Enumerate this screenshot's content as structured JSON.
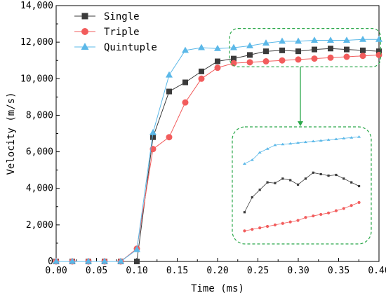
{
  "chart_data": {
    "type": "line",
    "xlabel": "Time (ms)",
    "ylabel": "Velocity (m/s)",
    "xlim": [
      0,
      0.4
    ],
    "ylim": [
      0,
      14000
    ],
    "x_ticks": [
      "0.00",
      "0.05",
      "0.10",
      "0.15",
      "0.20",
      "0.25",
      "0.30",
      "0.35",
      "0.40"
    ],
    "y_ticks": [
      "0",
      "2,000",
      "4,000",
      "6,000",
      "8,000",
      "10,000",
      "12,000",
      "14,000"
    ],
    "legend_position": "top-left",
    "inset": {
      "description": "magnified view of 0.24–0.39 ms region",
      "x_range": [
        0.235,
        0.395
      ],
      "y_range": [
        10800,
        12200
      ]
    },
    "series": [
      {
        "name": "Single",
        "color": "#3b3b3b",
        "marker": "square",
        "x": [
          0,
          0.02,
          0.04,
          0.06,
          0.08,
          0.1,
          0.12,
          0.14,
          0.16,
          0.18,
          0.2,
          0.22,
          0.24,
          0.26,
          0.28,
          0.3,
          0.32,
          0.34,
          0.36,
          0.38,
          0.4
        ],
        "y": [
          0,
          0,
          0,
          0,
          0,
          0,
          6800,
          9300,
          9800,
          10400,
          10950,
          11100,
          11300,
          11500,
          11550,
          11500,
          11600,
          11650,
          11600,
          11550,
          11500
        ]
      },
      {
        "name": "Triple",
        "color": "#f25c5c",
        "marker": "circle",
        "x": [
          0,
          0.02,
          0.04,
          0.06,
          0.08,
          0.1,
          0.12,
          0.14,
          0.16,
          0.18,
          0.2,
          0.22,
          0.24,
          0.26,
          0.28,
          0.3,
          0.32,
          0.34,
          0.36,
          0.38,
          0.4
        ],
        "y": [
          0,
          0,
          0,
          0,
          0,
          700,
          6150,
          6800,
          8700,
          10000,
          10600,
          10850,
          10900,
          10950,
          11000,
          11050,
          11100,
          11150,
          11200,
          11250,
          11300
        ]
      },
      {
        "name": "Quintuple",
        "color": "#5bb8e8",
        "marker": "triangle",
        "x": [
          0,
          0.02,
          0.04,
          0.06,
          0.08,
          0.1,
          0.12,
          0.14,
          0.16,
          0.18,
          0.2,
          0.22,
          0.24,
          0.26,
          0.28,
          0.3,
          0.32,
          0.34,
          0.36,
          0.38,
          0.4
        ],
        "y": [
          0,
          0,
          0,
          0,
          0,
          650,
          7050,
          10200,
          11550,
          11700,
          11650,
          11700,
          11800,
          11950,
          12050,
          12050,
          12100,
          12100,
          12100,
          12150,
          12150
        ]
      }
    ],
    "inset_series": [
      {
        "name": "Single",
        "x": [
          0.24,
          0.25,
          0.26,
          0.27,
          0.28,
          0.29,
          0.3,
          0.31,
          0.32,
          0.33,
          0.34,
          0.35,
          0.36,
          0.37,
          0.38,
          0.39
        ],
        "y": [
          11150,
          11350,
          11450,
          11550,
          11540,
          11600,
          11580,
          11520,
          11600,
          11680,
          11660,
          11640,
          11650,
          11600,
          11550,
          11500
        ]
      },
      {
        "name": "Triple",
        "x": [
          0.24,
          0.25,
          0.26,
          0.27,
          0.28,
          0.29,
          0.3,
          0.31,
          0.32,
          0.33,
          0.34,
          0.35,
          0.36,
          0.37,
          0.38,
          0.39
        ],
        "y": [
          10900,
          10920,
          10940,
          10960,
          10980,
          11000,
          11020,
          11040,
          11080,
          11100,
          11120,
          11140,
          11170,
          11200,
          11240,
          11280
        ]
      },
      {
        "name": "Quintuple",
        "x": [
          0.24,
          0.25,
          0.26,
          0.27,
          0.28,
          0.29,
          0.3,
          0.31,
          0.32,
          0.33,
          0.34,
          0.35,
          0.36,
          0.37,
          0.38,
          0.39
        ],
        "y": [
          11800,
          11850,
          11950,
          12000,
          12050,
          12060,
          12070,
          12080,
          12090,
          12100,
          12110,
          12120,
          12130,
          12140,
          12150,
          12160
        ]
      }
    ]
  }
}
